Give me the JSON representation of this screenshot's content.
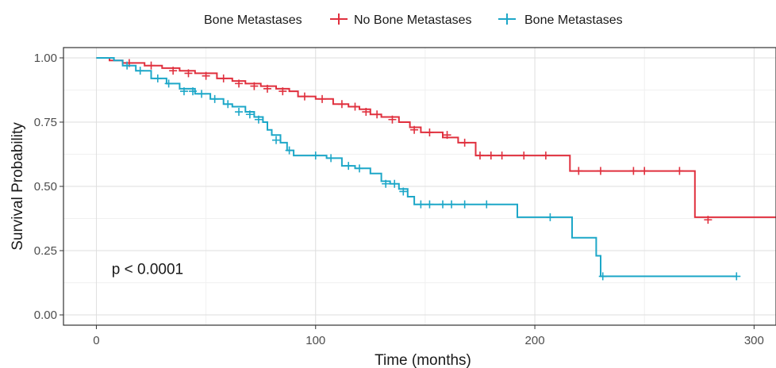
{
  "chart_data": {
    "type": "line",
    "subtype": "kaplan-meier",
    "legend": {
      "title": "Bone Metastases",
      "position": "top"
    },
    "xlabel": "Time (months)",
    "ylabel": "Survival Probability",
    "xlim": [
      -15,
      310
    ],
    "ylim": [
      -0.04,
      1.04
    ],
    "x_ticks": [
      0,
      100,
      200,
      300
    ],
    "x_tick_labels": [
      "0",
      "100",
      "200",
      "300"
    ],
    "y_ticks": [
      0,
      0.25,
      0.5,
      0.75,
      1.0
    ],
    "y_tick_labels": [
      "0.00",
      "0.25",
      "0.50",
      "0.75",
      "1.00"
    ],
    "grid": true,
    "annotation": {
      "text": "p < 0.0001",
      "x": 7,
      "y": 0.18
    },
    "series": [
      {
        "name": "No Bone Metastases",
        "color": "#e0303e",
        "steps": [
          [
            0,
            1.0
          ],
          [
            6,
            0.99
          ],
          [
            12,
            0.98
          ],
          [
            22,
            0.97
          ],
          [
            30,
            0.96
          ],
          [
            38,
            0.95
          ],
          [
            45,
            0.94
          ],
          [
            55,
            0.92
          ],
          [
            62,
            0.91
          ],
          [
            68,
            0.9
          ],
          [
            75,
            0.89
          ],
          [
            82,
            0.88
          ],
          [
            88,
            0.87
          ],
          [
            92,
            0.85
          ],
          [
            100,
            0.84
          ],
          [
            108,
            0.82
          ],
          [
            115,
            0.81
          ],
          [
            120,
            0.8
          ],
          [
            125,
            0.78
          ],
          [
            130,
            0.77
          ],
          [
            138,
            0.75
          ],
          [
            143,
            0.73
          ],
          [
            148,
            0.71
          ],
          [
            158,
            0.69
          ],
          [
            165,
            0.67
          ],
          [
            173,
            0.62
          ],
          [
            216,
            0.56
          ],
          [
            273,
            0.38
          ],
          [
            310,
            0.38
          ]
        ],
        "censored": [
          [
            15,
            0.98
          ],
          [
            25,
            0.97
          ],
          [
            35,
            0.95
          ],
          [
            42,
            0.94
          ],
          [
            50,
            0.93
          ],
          [
            58,
            0.92
          ],
          [
            65,
            0.9
          ],
          [
            72,
            0.89
          ],
          [
            78,
            0.88
          ],
          [
            85,
            0.87
          ],
          [
            95,
            0.85
          ],
          [
            103,
            0.84
          ],
          [
            112,
            0.82
          ],
          [
            118,
            0.81
          ],
          [
            123,
            0.79
          ],
          [
            128,
            0.78
          ],
          [
            135,
            0.76
          ],
          [
            145,
            0.72
          ],
          [
            152,
            0.71
          ],
          [
            160,
            0.7
          ],
          [
            168,
            0.67
          ],
          [
            175,
            0.62
          ],
          [
            180,
            0.62
          ],
          [
            185,
            0.62
          ],
          [
            195,
            0.62
          ],
          [
            205,
            0.62
          ],
          [
            220,
            0.56
          ],
          [
            230,
            0.56
          ],
          [
            245,
            0.56
          ],
          [
            250,
            0.56
          ],
          [
            266,
            0.56
          ],
          [
            279,
            0.37
          ]
        ]
      },
      {
        "name": "Bone Metastases",
        "color": "#1da7c8",
        "steps": [
          [
            0,
            1.0
          ],
          [
            8,
            0.99
          ],
          [
            12,
            0.97
          ],
          [
            18,
            0.95
          ],
          [
            25,
            0.92
          ],
          [
            32,
            0.9
          ],
          [
            38,
            0.88
          ],
          [
            45,
            0.86
          ],
          [
            52,
            0.84
          ],
          [
            58,
            0.82
          ],
          [
            62,
            0.81
          ],
          [
            68,
            0.79
          ],
          [
            72,
            0.77
          ],
          [
            76,
            0.75
          ],
          [
            78,
            0.72
          ],
          [
            80,
            0.7
          ],
          [
            84,
            0.67
          ],
          [
            87,
            0.64
          ],
          [
            90,
            0.62
          ],
          [
            105,
            0.61
          ],
          [
            112,
            0.58
          ],
          [
            118,
            0.57
          ],
          [
            125,
            0.55
          ],
          [
            130,
            0.52
          ],
          [
            134,
            0.51
          ],
          [
            138,
            0.49
          ],
          [
            142,
            0.46
          ],
          [
            145,
            0.43
          ],
          [
            192,
            0.38
          ],
          [
            217,
            0.3
          ],
          [
            228,
            0.23
          ],
          [
            230,
            0.15
          ],
          [
            292,
            0.15
          ]
        ],
        "censored": [
          [
            14,
            0.97
          ],
          [
            20,
            0.95
          ],
          [
            28,
            0.92
          ],
          [
            33,
            0.9
          ],
          [
            40,
            0.87
          ],
          [
            44,
            0.87
          ],
          [
            48,
            0.86
          ],
          [
            54,
            0.84
          ],
          [
            60,
            0.82
          ],
          [
            65,
            0.79
          ],
          [
            70,
            0.78
          ],
          [
            74,
            0.76
          ],
          [
            82,
            0.68
          ],
          [
            88,
            0.64
          ],
          [
            100,
            0.62
          ],
          [
            107,
            0.61
          ],
          [
            115,
            0.58
          ],
          [
            120,
            0.57
          ],
          [
            132,
            0.51
          ],
          [
            136,
            0.51
          ],
          [
            140,
            0.48
          ],
          [
            148,
            0.43
          ],
          [
            152,
            0.43
          ],
          [
            158,
            0.43
          ],
          [
            162,
            0.43
          ],
          [
            168,
            0.43
          ],
          [
            178,
            0.43
          ],
          [
            207,
            0.38
          ],
          [
            231,
            0.15
          ],
          [
            292,
            0.15
          ]
        ]
      }
    ]
  }
}
